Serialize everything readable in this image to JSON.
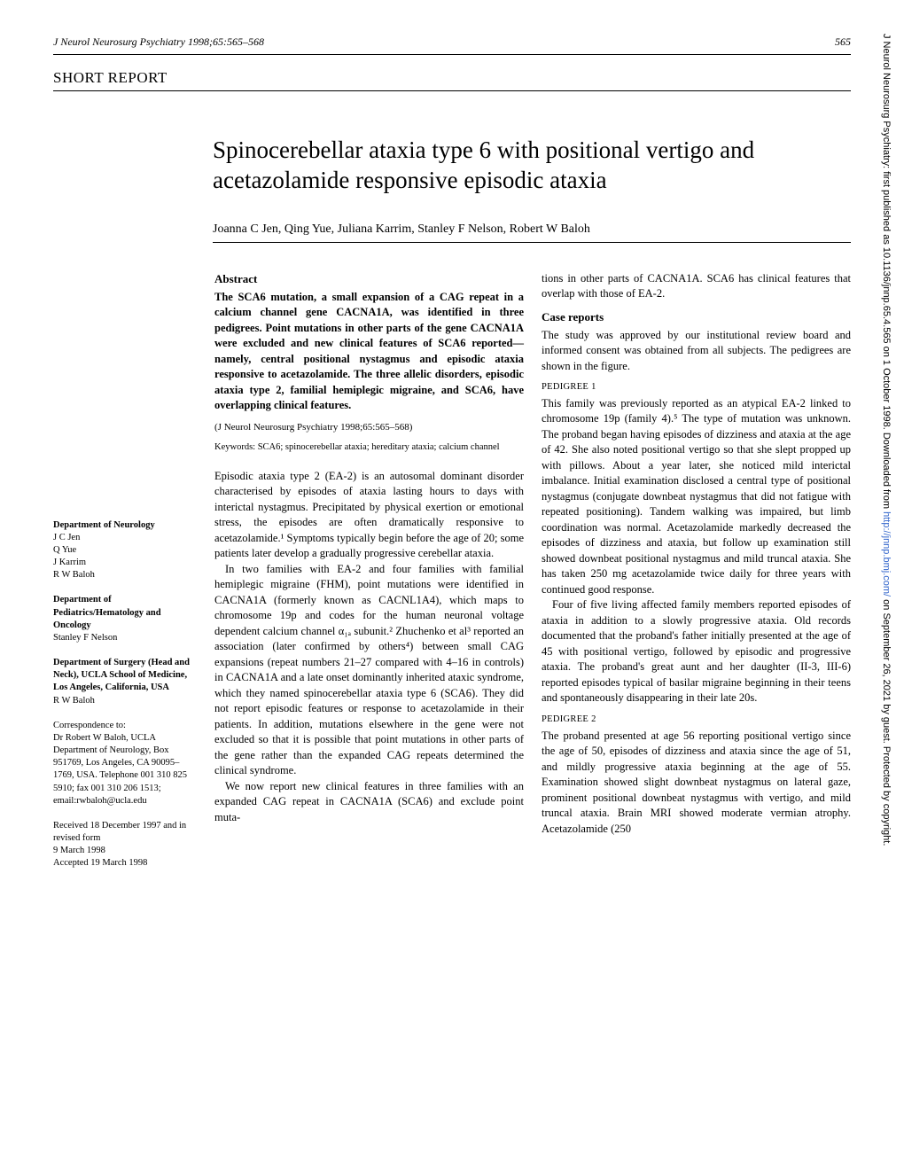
{
  "header": {
    "journal_ref": "J Neurol Neurosurg Psychiatry 1998;65:565–568",
    "page_number": "565"
  },
  "short_report_label": "SHORT REPORT",
  "title": "Spinocerebellar ataxia type 6 with positional vertigo and acetazolamide responsive episodic ataxia",
  "authors": "Joanna C Jen, Qing Yue, Juliana Karrim, Stanley F Nelson, Robert W Baloh",
  "sidebar": {
    "dept1_title": "Department of Neurology",
    "dept1_names": "J C Jen\nQ Yue\nJ Karrim\nR W Baloh",
    "dept2_title": "Department of Pediatrics/Hematology and Oncology",
    "dept2_names": "Stanley F Nelson",
    "dept3_title": "Department of Surgery (Head and Neck), UCLA School of Medicine, Los Angeles, California, USA",
    "dept3_names": "R W Baloh",
    "correspondence": "Correspondence to:\nDr Robert W Baloh, UCLA Department of Neurology, Box 951769, Los Angeles, CA 90095–1769, USA. Telephone 001 310 825 5910; fax 001 310 206 1513; email:rwbaloh@ucla.edu",
    "received": "Received 18 December 1997 and in revised form\n9 March 1998\nAccepted 19 March 1998"
  },
  "col1": {
    "abstract_heading": "Abstract",
    "abstract_text": "The SCA6 mutation, a small expansion of a CAG repeat in a calcium channel gene CACNA1A, was identified in three pedigrees. Point mutations in other parts of the gene CACNA1A were excluded and new clinical features of SCA6 reported—namely, central positional nystagmus and episodic ataxia responsive to acetazolamide. The three allelic disorders, episodic ataxia type 2, familial hemiplegic migraine, and SCA6, have overlapping clinical features.",
    "citation": "(J Neurol Neurosurg Psychiatry 1998;65:565–568)",
    "keywords": "Keywords: SCA6; spinocerebellar ataxia; hereditary ataxia; calcium channel",
    "para1": "Episodic ataxia type 2 (EA-2) is an autosomal dominant disorder characterised by episodes of ataxia lasting hours to days with interictal nystagmus. Precipitated by physical exertion or emotional stress, the episodes are often dramatically responsive to acetazolamide.¹ Symptoms typically begin before the age of 20; some patients later develop a gradually progressive cerebellar ataxia.",
    "para2": "In two families with EA-2 and four families with familial hemiplegic migraine (FHM), point mutations were identified in CACNA1A (formerly known as CACNL1A4), which maps to chromosome 19p and codes for the human neuronal voltage dependent calcium channel α₁ₐ subunit.² Zhuchenko et al³ reported an association (later confirmed by others⁴) between small CAG expansions (repeat numbers 21–27 compared with 4–16 in controls) in CACNA1A and a late onset dominantly inherited ataxic syndrome, which they named spinocerebellar ataxia type 6 (SCA6). They did not report episodic features or response to acetazolamide in their patients. In addition, mutations elsewhere in the gene were not excluded so that it is possible that point mutations in other parts of the gene rather than the expanded CAG repeats determined the clinical syndrome.",
    "para3": "We now report new clinical features in three families with an expanded CAG repeat in CACNA1A (SCA6) and exclude point muta-"
  },
  "col2": {
    "para1": "tions in other parts of CACNA1A. SCA6 has clinical features that overlap with those of EA-2.",
    "case_heading": "Case reports",
    "case_intro": "The study was approved by our institutional review board and informed consent was obtained from all subjects. The pedigrees are shown in the figure.",
    "ped1_heading": "PEDIGREE 1",
    "ped1_p1": "This family was previously reported as an atypical EA-2 linked to chromosome 19p (family 4).⁵ The type of mutation was unknown. The proband began having episodes of dizziness and ataxia at the age of 42. She also noted positional vertigo so that she slept propped up with pillows. About a year later, she noticed mild interictal imbalance. Initial examination disclosed a central type of positional nystagmus (conjugate downbeat nystagmus that did not fatigue with repeated positioning). Tandem walking was impaired, but limb coordination was normal. Acetazolamide markedly decreased the episodes of dizziness and ataxia, but follow up examination still showed downbeat positional nystagmus and mild truncal ataxia. She has taken 250 mg acetazolamide twice daily for three years with continued good response.",
    "ped1_p2": "Four of five living affected family members reported episodes of ataxia in addition to a slowly progressive ataxia. Old records documented that the proband's father initially presented at the age of 45 with positional vertigo, followed by episodic and progressive ataxia. The proband's great aunt and her daughter (II-3, III-6) reported episodes typical of basilar migraine beginning in their teens and spontaneously disappearing in their late 20s.",
    "ped2_heading": "PEDIGREE 2",
    "ped2_p1": "The proband presented at age 56 reporting positional vertigo since the age of 50, episodes of dizziness and ataxia since the age of 51, and mildly progressive ataxia beginning at the age of 55. Examination showed slight downbeat nystagmus on lateral gaze, prominent positional downbeat nystagmus with vertigo, and mild truncal ataxia. Brain MRI showed moderate vermian atrophy. Acetazolamide (250"
  },
  "side_text": {
    "prefix": "J Neurol Neurosurg Psychiatry: first published as 10.1136/jnnp.65.4.565 on 1 October 1998. Downloaded from ",
    "link": "http://jnnp.bmj.com/",
    "suffix": " on September 26, 2021 by guest. Protected by copyright."
  }
}
